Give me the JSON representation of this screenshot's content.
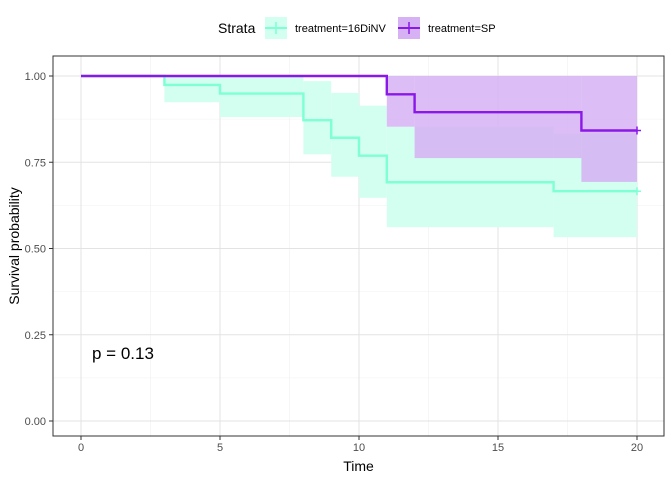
{
  "chart_data": {
    "type": "line",
    "subtype": "kaplan-meier step curve with confidence bands",
    "xlabel": "Time",
    "ylabel": "Survival probability",
    "xlim": [
      0,
      20
    ],
    "ylim": [
      0,
      1
    ],
    "x_ticks": [
      0,
      5,
      10,
      15,
      20
    ],
    "x_tick_labels": [
      "0",
      "5",
      "10",
      "15",
      "20"
    ],
    "y_ticks": [
      0,
      0.25,
      0.5,
      0.75,
      1
    ],
    "y_tick_labels": [
      "0.00",
      "0.25",
      "0.50",
      "0.75",
      "1.00"
    ],
    "grid": true,
    "legend": {
      "title": "Strata",
      "position": "top",
      "entries": [
        "treatment=16DiNV",
        "treatment=SP"
      ]
    },
    "annotation": "p = 0.13",
    "series": [
      {
        "name": "treatment=16DiNV",
        "color": "#7FFFD4",
        "band_color": "#D2FFF0",
        "steps": [
          {
            "x": 0,
            "y": 1.0,
            "lower": 1.0,
            "upper": 1.0
          },
          {
            "x": 3,
            "y": 0.974,
            "lower": 0.924,
            "upper": 1.0
          },
          {
            "x": 5,
            "y": 0.949,
            "lower": 0.881,
            "upper": 1.0
          },
          {
            "x": 8,
            "y": 0.872,
            "lower": 0.773,
            "upper": 0.985
          },
          {
            "x": 9,
            "y": 0.821,
            "lower": 0.708,
            "upper": 0.951
          },
          {
            "x": 10,
            "y": 0.769,
            "lower": 0.647,
            "upper": 0.914
          },
          {
            "x": 11,
            "y": 0.692,
            "lower": 0.562,
            "upper": 0.853
          },
          {
            "x": 17,
            "y": 0.666,
            "lower": 0.533,
            "upper": 0.833
          }
        ],
        "end_x": 20,
        "censor_x": [
          20
        ]
      },
      {
        "name": "treatment=SP",
        "color": "#8A18E8",
        "band_color": "#D6B1F3",
        "steps": [
          {
            "x": 0,
            "y": 1.0,
            "lower": 1.0,
            "upper": 1.0
          },
          {
            "x": 11,
            "y": 0.947,
            "lower": 0.853,
            "upper": 1.0
          },
          {
            "x": 12,
            "y": 0.895,
            "lower": 0.762,
            "upper": 1.0
          },
          {
            "x": 18,
            "y": 0.842,
            "lower": 0.693,
            "upper": 1.0
          }
        ],
        "end_x": 20,
        "censor_x": [
          20
        ]
      }
    ]
  }
}
